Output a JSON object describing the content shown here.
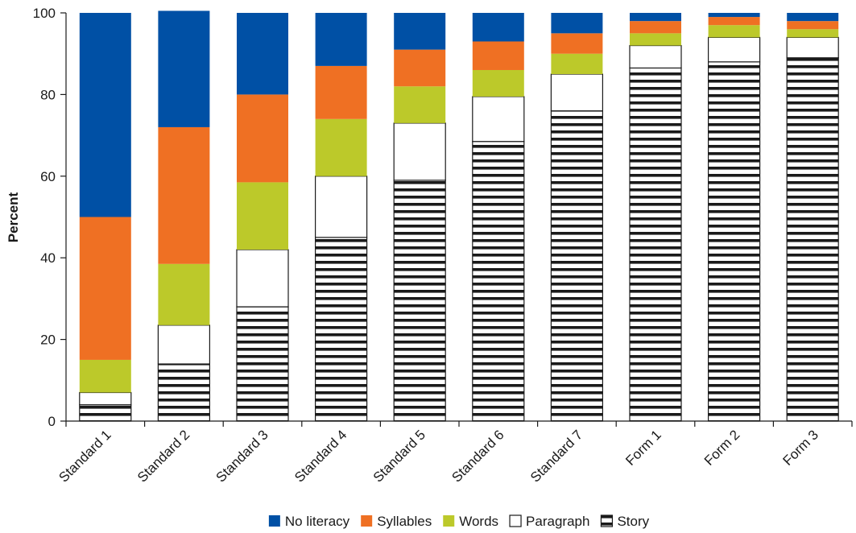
{
  "chart_data": {
    "type": "bar",
    "stacked": true,
    "title": "",
    "xlabel": "",
    "ylabel": "Percent",
    "ylim": [
      0,
      100
    ],
    "yticks": [
      0,
      20,
      40,
      60,
      80,
      100
    ],
    "grid": false,
    "legend_position": "bottom",
    "categories": [
      "Standard 1",
      "Standard 2",
      "Standard 3",
      "Standard 4",
      "Standard 5",
      "Standard 6",
      "Standard 7",
      "Form 1",
      "Form 2",
      "Form 3"
    ],
    "series": [
      {
        "name": "Story",
        "color": "#1a1a1a",
        "pattern": "horizontal-stripes",
        "values": [
          4,
          14,
          28,
          45,
          59,
          68.5,
          76,
          86.5,
          88,
          89
        ]
      },
      {
        "name": "Paragraph",
        "color": "#ffffff",
        "values": [
          3,
          9.5,
          14,
          15,
          14,
          11,
          9,
          5.5,
          6,
          5
        ]
      },
      {
        "name": "Words",
        "color": "#bcc92a",
        "values": [
          8,
          15,
          16.5,
          14,
          9,
          6.5,
          5,
          3,
          3,
          2
        ]
      },
      {
        "name": "Syllables",
        "color": "#ef7023",
        "values": [
          35,
          33.5,
          21.5,
          13,
          9,
          7,
          5,
          3,
          2,
          2
        ]
      },
      {
        "name": "No literacy",
        "color": "#0050a5",
        "values": [
          50,
          28.5,
          20,
          13,
          9,
          7,
          5,
          2,
          1,
          2
        ]
      }
    ],
    "legend_order": [
      "No literacy",
      "Syllables",
      "Words",
      "Paragraph",
      "Story"
    ]
  }
}
